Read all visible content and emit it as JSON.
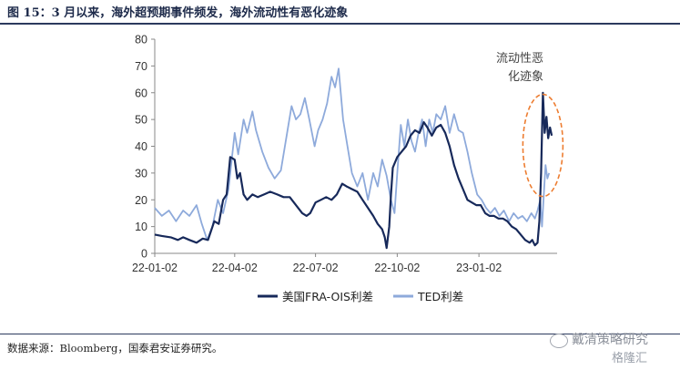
{
  "header": {
    "title": "图 15：3 月以来，海外超预期事件频发，海外流动性有恶化迹象"
  },
  "footer": {
    "source": "数据来源：Bloomberg，国泰君安证券研究。"
  },
  "watermark": {
    "line1": "戴清策略研究",
    "line2": "格隆汇",
    "icon": "wechat-icon"
  },
  "chart_data": {
    "type": "line",
    "title": "",
    "xlabel": "",
    "ylabel": "",
    "ylim": [
      0,
      80
    ],
    "yticks": [
      0,
      10,
      20,
      30,
      40,
      50,
      60,
      70,
      80
    ],
    "xlim": [
      "2022-01-02",
      "2023-03-31"
    ],
    "xticks": [
      "22-01-02",
      "22-04-02",
      "22-07-02",
      "22-10-02",
      "23-01-02"
    ],
    "xtick_dates": [
      "2022-01-02",
      "2022-04-02",
      "2022-07-02",
      "2022-10-02",
      "2023-01-02"
    ],
    "grid": false,
    "legend": {
      "placement": "bottom"
    },
    "annotation": {
      "lines": [
        "流动性恶",
        "化迹象"
      ],
      "target_date": "2023-03-15",
      "target_range": [
        26,
        56
      ]
    },
    "series": [
      {
        "name": "美国FRA-OIS利差",
        "color": "#17295a",
        "points": [
          [
            "2022-01-02",
            7
          ],
          [
            "2022-01-10",
            6.5
          ],
          [
            "2022-01-20",
            6
          ],
          [
            "2022-01-28",
            5
          ],
          [
            "2022-02-03",
            6
          ],
          [
            "2022-02-10",
            5
          ],
          [
            "2022-02-18",
            4
          ],
          [
            "2022-02-25",
            5.5
          ],
          [
            "2022-03-03",
            5
          ],
          [
            "2022-03-10",
            12
          ],
          [
            "2022-03-15",
            11
          ],
          [
            "2022-03-20",
            20
          ],
          [
            "2022-03-24",
            22
          ],
          [
            "2022-03-28",
            36
          ],
          [
            "2022-04-02",
            35
          ],
          [
            "2022-04-05",
            28
          ],
          [
            "2022-04-08",
            30
          ],
          [
            "2022-04-12",
            22
          ],
          [
            "2022-04-16",
            20
          ],
          [
            "2022-04-22",
            22
          ],
          [
            "2022-04-28",
            21
          ],
          [
            "2022-05-05",
            22
          ],
          [
            "2022-05-12",
            23
          ],
          [
            "2022-05-20",
            22
          ],
          [
            "2022-05-27",
            21
          ],
          [
            "2022-06-03",
            21
          ],
          [
            "2022-06-10",
            18
          ],
          [
            "2022-06-17",
            15
          ],
          [
            "2022-06-22",
            14
          ],
          [
            "2022-06-26",
            15
          ],
          [
            "2022-07-02",
            19
          ],
          [
            "2022-07-08",
            20
          ],
          [
            "2022-07-14",
            21
          ],
          [
            "2022-07-20",
            20
          ],
          [
            "2022-07-26",
            22
          ],
          [
            "2022-08-01",
            26
          ],
          [
            "2022-08-06",
            25
          ],
          [
            "2022-08-12",
            24
          ],
          [
            "2022-08-18",
            23
          ],
          [
            "2022-08-24",
            20
          ],
          [
            "2022-08-30",
            17
          ],
          [
            "2022-09-05",
            14
          ],
          [
            "2022-09-10",
            11
          ],
          [
            "2022-09-15",
            9
          ],
          [
            "2022-09-18",
            6
          ],
          [
            "2022-09-20",
            2
          ],
          [
            "2022-09-23",
            10
          ],
          [
            "2022-09-25",
            22
          ],
          [
            "2022-09-27",
            32
          ],
          [
            "2022-10-02",
            36
          ],
          [
            "2022-10-07",
            38
          ],
          [
            "2022-10-12",
            40
          ],
          [
            "2022-10-17",
            44
          ],
          [
            "2022-10-22",
            46
          ],
          [
            "2022-10-27",
            45
          ],
          [
            "2022-11-01",
            49
          ],
          [
            "2022-11-05",
            47
          ],
          [
            "2022-11-10",
            44
          ],
          [
            "2022-11-15",
            47
          ],
          [
            "2022-11-20",
            48
          ],
          [
            "2022-11-25",
            45
          ],
          [
            "2022-11-30",
            40
          ],
          [
            "2022-12-05",
            33
          ],
          [
            "2022-12-10",
            28
          ],
          [
            "2022-12-15",
            24
          ],
          [
            "2022-12-20",
            20
          ],
          [
            "2022-12-25",
            19
          ],
          [
            "2022-12-30",
            18
          ],
          [
            "2023-01-04",
            18
          ],
          [
            "2023-01-09",
            15
          ],
          [
            "2023-01-14",
            14
          ],
          [
            "2023-01-19",
            14
          ],
          [
            "2023-01-24",
            13
          ],
          [
            "2023-01-29",
            13
          ],
          [
            "2023-02-03",
            12
          ],
          [
            "2023-02-08",
            10
          ],
          [
            "2023-02-13",
            9
          ],
          [
            "2023-02-18",
            7
          ],
          [
            "2023-02-23",
            5
          ],
          [
            "2023-02-28",
            4
          ],
          [
            "2023-03-03",
            5
          ],
          [
            "2023-03-06",
            3
          ],
          [
            "2023-03-09",
            4
          ],
          [
            "2023-03-11",
            12
          ],
          [
            "2023-03-13",
            30
          ],
          [
            "2023-03-15",
            60
          ],
          [
            "2023-03-17",
            45
          ],
          [
            "2023-03-19",
            51
          ],
          [
            "2023-03-21",
            43
          ],
          [
            "2023-03-23",
            47
          ],
          [
            "2023-03-25",
            44
          ]
        ]
      },
      {
        "name": "TED利差",
        "color": "#8eaadb",
        "points": [
          [
            "2022-01-02",
            17
          ],
          [
            "2022-01-10",
            14
          ],
          [
            "2022-01-18",
            16
          ],
          [
            "2022-01-26",
            12
          ],
          [
            "2022-02-03",
            16
          ],
          [
            "2022-02-10",
            14
          ],
          [
            "2022-02-18",
            18
          ],
          [
            "2022-02-24",
            11
          ],
          [
            "2022-03-02",
            5
          ],
          [
            "2022-03-08",
            10
          ],
          [
            "2022-03-14",
            20
          ],
          [
            "2022-03-20",
            15
          ],
          [
            "2022-03-26",
            24
          ],
          [
            "2022-04-02",
            45
          ],
          [
            "2022-04-06",
            37
          ],
          [
            "2022-04-12",
            50
          ],
          [
            "2022-04-16",
            45
          ],
          [
            "2022-04-22",
            53
          ],
          [
            "2022-04-26",
            46
          ],
          [
            "2022-05-03",
            38
          ],
          [
            "2022-05-10",
            32
          ],
          [
            "2022-05-17",
            28
          ],
          [
            "2022-05-24",
            31
          ],
          [
            "2022-05-31",
            45
          ],
          [
            "2022-06-05",
            55
          ],
          [
            "2022-06-10",
            50
          ],
          [
            "2022-06-15",
            52
          ],
          [
            "2022-06-20",
            58
          ],
          [
            "2022-06-25",
            50
          ],
          [
            "2022-07-01",
            40
          ],
          [
            "2022-07-05",
            46
          ],
          [
            "2022-07-10",
            50
          ],
          [
            "2022-07-15",
            56
          ],
          [
            "2022-07-20",
            66
          ],
          [
            "2022-07-24",
            62
          ],
          [
            "2022-07-28",
            69
          ],
          [
            "2022-08-02",
            50
          ],
          [
            "2022-08-07",
            40
          ],
          [
            "2022-08-12",
            30
          ],
          [
            "2022-08-18",
            25
          ],
          [
            "2022-08-24",
            30
          ],
          [
            "2022-08-30",
            20
          ],
          [
            "2022-09-05",
            30
          ],
          [
            "2022-09-10",
            25
          ],
          [
            "2022-09-15",
            35
          ],
          [
            "2022-09-20",
            29
          ],
          [
            "2022-09-25",
            20
          ],
          [
            "2022-09-29",
            15
          ],
          [
            "2022-10-02",
            30
          ],
          [
            "2022-10-06",
            48
          ],
          [
            "2022-10-10",
            40
          ],
          [
            "2022-10-14",
            50
          ],
          [
            "2022-10-18",
            42
          ],
          [
            "2022-10-22",
            38
          ],
          [
            "2022-10-26",
            45
          ],
          [
            "2022-10-30",
            50
          ],
          [
            "2022-11-03",
            40
          ],
          [
            "2022-11-07",
            50
          ],
          [
            "2022-11-11",
            45
          ],
          [
            "2022-11-15",
            52
          ],
          [
            "2022-11-20",
            50
          ],
          [
            "2022-11-25",
            55
          ],
          [
            "2022-11-30",
            45
          ],
          [
            "2022-12-05",
            52
          ],
          [
            "2022-12-10",
            46
          ],
          [
            "2022-12-15",
            45
          ],
          [
            "2022-12-20",
            38
          ],
          [
            "2022-12-25",
            30
          ],
          [
            "2022-12-31",
            22
          ],
          [
            "2023-01-05",
            20
          ],
          [
            "2023-01-10",
            17
          ],
          [
            "2023-01-15",
            15
          ],
          [
            "2023-01-20",
            17
          ],
          [
            "2023-01-25",
            14
          ],
          [
            "2023-01-30",
            16
          ],
          [
            "2023-02-05",
            12
          ],
          [
            "2023-02-10",
            15
          ],
          [
            "2023-02-15",
            13
          ],
          [
            "2023-02-20",
            14
          ],
          [
            "2023-02-25",
            12
          ],
          [
            "2023-03-02",
            15
          ],
          [
            "2023-03-06",
            13
          ],
          [
            "2023-03-09",
            16
          ],
          [
            "2023-03-12",
            20
          ],
          [
            "2023-03-14",
            10
          ],
          [
            "2023-03-16",
            22
          ],
          [
            "2023-03-18",
            33
          ],
          [
            "2023-03-20",
            28
          ],
          [
            "2023-03-22",
            30
          ]
        ]
      }
    ]
  }
}
